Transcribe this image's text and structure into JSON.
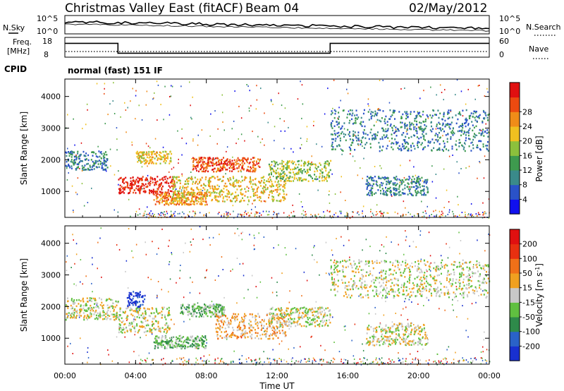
{
  "header": {
    "station": "Christmas Valley East (fitACF)",
    "beam": "Beam 04",
    "date": "02/May/2012"
  },
  "status_panels": {
    "nsky_label": "N.Sky",
    "nsearch_label": "N.Search",
    "noise_ticks": [
      "10^5",
      "10^0"
    ],
    "freq_label_top": "Freq.",
    "freq_label_bottom": "[MHz]",
    "freq_ticks": [
      "18",
      "8"
    ],
    "nave_label": "Nave",
    "nave_ticks": [
      "60",
      "0"
    ],
    "cpid_label": "CPID",
    "cpid_text": "normal (fast) 151 IF",
    "freq_steps_mhz": [
      [
        0,
        15
      ],
      [
        3.0,
        15
      ],
      [
        3.0,
        10
      ],
      [
        15.0,
        10
      ],
      [
        15.0,
        15
      ],
      [
        24,
        15
      ]
    ]
  },
  "chart_data": [
    {
      "type": "heatmap",
      "name": "power-panel",
      "ylabel": "Slant Range [km]",
      "xlabel": "",
      "yticks": [
        1000,
        2000,
        3000,
        4000
      ],
      "ylim": [
        180,
        4550
      ],
      "colorbar": {
        "label": "Power [dB]",
        "ticks": [
          "4",
          "8",
          "12",
          "16",
          "20",
          "24",
          "28"
        ],
        "colors": [
          "#1010ee",
          "#2a52c8",
          "#3a8a8a",
          "#3e9a4e",
          "#8cc03c",
          "#f0c020",
          "#f08c18",
          "#ec4a10",
          "#e01010"
        ]
      },
      "bands": [
        {
          "t0": 0.0,
          "t1": 2.4,
          "r0": 1700,
          "r1": 2300,
          "c": 2
        },
        {
          "t0": 3.0,
          "t1": 6.2,
          "r0": 950,
          "r1": 1500,
          "c": 8
        },
        {
          "t0": 4.0,
          "t1": 6.0,
          "r0": 1900,
          "r1": 2300,
          "c": 5
        },
        {
          "t0": 5.0,
          "t1": 8.0,
          "r0": 600,
          "r1": 1000,
          "c": 6
        },
        {
          "t0": 6.0,
          "t1": 12.5,
          "r0": 700,
          "r1": 1500,
          "c": 5
        },
        {
          "t0": 7.2,
          "t1": 11.0,
          "r0": 1650,
          "r1": 2100,
          "c": 7
        },
        {
          "t0": 11.5,
          "t1": 15.0,
          "r0": 1350,
          "r1": 2000,
          "c": 4
        },
        {
          "t0": 15.0,
          "t1": 24.0,
          "r0": 2300,
          "r1": 3600,
          "c": 2
        },
        {
          "t0": 17.0,
          "t1": 20.5,
          "r0": 900,
          "r1": 1500,
          "c": 2
        }
      ]
    },
    {
      "type": "heatmap",
      "name": "velocity-panel",
      "ylabel": "Slant Range [km]",
      "xlabel": "Time UT",
      "xticks": [
        "00:00",
        "04:00",
        "08:00",
        "12:00",
        "16:00",
        "20:00",
        "00:00"
      ],
      "xlim": [
        0,
        24
      ],
      "yticks": [
        1000,
        2000,
        3000,
        4000
      ],
      "ylim": [
        180,
        4550
      ],
      "colorbar": {
        "label": "Velocity [m s^-1]",
        "ticks": [
          "200",
          "100",
          "50",
          "15",
          "-15",
          "-50",
          "-100",
          "-200"
        ],
        "colors": [
          "#1830d0",
          "#2a62c8",
          "#2e8a4a",
          "#60c040",
          "#c8c8c8",
          "#f0a020",
          "#f07018",
          "#e83010",
          "#e01010"
        ]
      },
      "bands": [
        {
          "t0": 0.0,
          "t1": 3.0,
          "r0": 1600,
          "r1": 2300,
          "c": 4
        },
        {
          "t0": 3.0,
          "t1": 6.0,
          "r0": 1200,
          "r1": 2000,
          "c": 4
        },
        {
          "t0": 3.5,
          "t1": 4.5,
          "r0": 2000,
          "r1": 2500,
          "c": 0
        },
        {
          "t0": 5.0,
          "t1": 8.0,
          "r0": 700,
          "r1": 1100,
          "c": 3
        },
        {
          "t0": 6.5,
          "t1": 9.0,
          "r0": 1700,
          "r1": 2100,
          "c": 3
        },
        {
          "t0": 8.5,
          "t1": 12.5,
          "r0": 1000,
          "r1": 1800,
          "c": 5
        },
        {
          "t0": 11.5,
          "t1": 15.0,
          "r0": 1400,
          "r1": 2000,
          "c": 4
        },
        {
          "t0": 15.0,
          "t1": 24.0,
          "r0": 2300,
          "r1": 3500,
          "c": 4
        },
        {
          "t0": 17.0,
          "t1": 20.5,
          "r0": 800,
          "r1": 1500,
          "c": 4
        }
      ]
    }
  ]
}
